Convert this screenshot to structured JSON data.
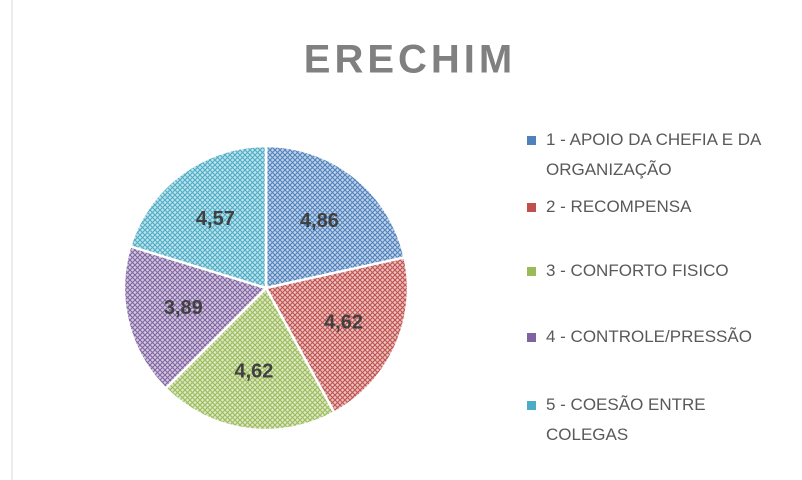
{
  "chart_data": {
    "type": "pie",
    "title": "ERECHIM",
    "categories": [
      "1 - APOIO DA CHEFIA E DA ORGANIZAÇÃO",
      "2 - RECOMPENSA",
      "3 - CONFORTO FISICO",
      "4 - CONTROLE/PRESSÃO",
      "5 - COESÃO ENTRE COLEGAS"
    ],
    "values": [
      4.86,
      4.62,
      4.62,
      3.89,
      4.57
    ],
    "value_labels": [
      "4,86",
      "4,62",
      "4,62",
      "3,89",
      "4,57"
    ],
    "colors": [
      "#4f81bd",
      "#c0504d",
      "#9bbb59",
      "#8064a2",
      "#4bacc6"
    ],
    "legend": "right"
  }
}
